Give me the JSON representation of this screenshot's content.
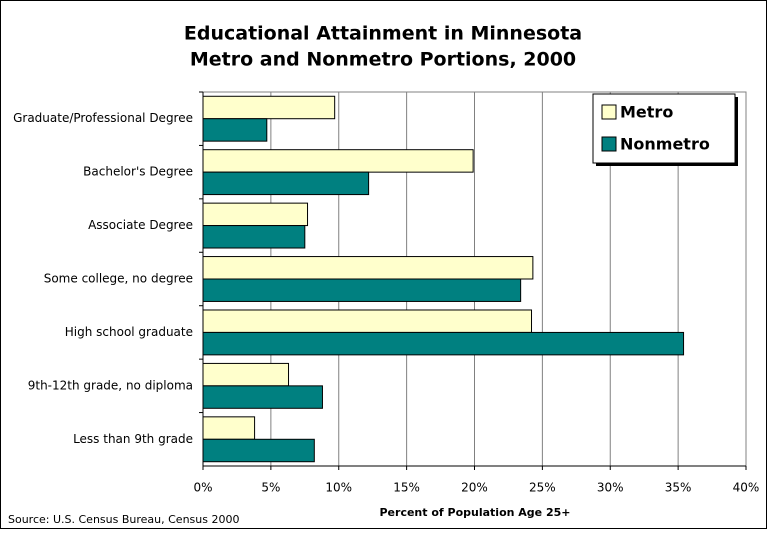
{
  "chart_data": {
    "type": "bar",
    "orientation": "horizontal",
    "title": "Educational Attainment in Minnesota",
    "subtitle": "Metro and Nonmetro Portions, 2000",
    "xlabel": "Percent of Population Age 25+",
    "source": "Source: U.S. Census Bureau, Census 2000",
    "categories": [
      "Graduate/Professional Degree",
      "Bachelor's Degree",
      "Associate Degree",
      "Some college, no degree",
      "High school graduate",
      "9th-12th grade, no diploma",
      "Less than 9th grade"
    ],
    "series": [
      {
        "name": "Metro",
        "color": "#ffffcc",
        "values": [
          9.7,
          19.9,
          7.7,
          24.3,
          24.2,
          6.3,
          3.8
        ]
      },
      {
        "name": "Nonmetro",
        "color": "#008080",
        "values": [
          4.7,
          12.2,
          7.5,
          23.4,
          35.4,
          8.8,
          8.2
        ]
      }
    ],
    "xlim": [
      0,
      40
    ],
    "xticks": [
      {
        "value": 0,
        "label": "0%"
      },
      {
        "value": 5,
        "label": "5%"
      },
      {
        "value": 10,
        "label": "10%"
      },
      {
        "value": 15,
        "label": "15%"
      },
      {
        "value": 20,
        "label": "20%"
      },
      {
        "value": 25,
        "label": "25%"
      },
      {
        "value": 30,
        "label": "30%"
      },
      {
        "value": 35,
        "label": "35%"
      },
      {
        "value": 40,
        "label": "40%"
      }
    ],
    "grid": true,
    "legend": "top-right"
  }
}
